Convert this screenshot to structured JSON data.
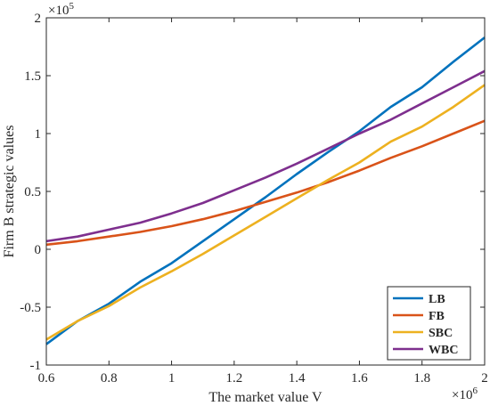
{
  "chart_data": {
    "type": "line",
    "title": "",
    "xlabel": "The market value V",
    "ylabel": "Firm B strategic values",
    "x_exponent_label": "×10",
    "x_exponent_power": "6",
    "y_exponent_label": "×10",
    "y_exponent_power": "5",
    "xlim": [
      0.6,
      2.0
    ],
    "ylim": [
      -1.0,
      2.0
    ],
    "xticks": [
      0.6,
      0.8,
      1.0,
      1.2,
      1.4,
      1.6,
      1.8,
      2.0
    ],
    "xtick_labels": [
      "0.6",
      "0.8",
      "1",
      "1.2",
      "1.4",
      "1.6",
      "1.8",
      "2"
    ],
    "yticks": [
      -1.0,
      -0.5,
      0,
      0.5,
      1.0,
      1.5,
      2.0
    ],
    "ytick_labels": [
      "-1",
      "-0.5",
      "0",
      "0.5",
      "1",
      "1.5",
      "2"
    ],
    "grid": false,
    "legend_position": "bottom-right",
    "x": [
      0.6,
      0.7,
      0.8,
      0.9,
      1.0,
      1.1,
      1.2,
      1.3,
      1.4,
      1.5,
      1.6,
      1.7,
      1.8,
      1.9,
      2.0
    ],
    "series": [
      {
        "name": "LB",
        "color": "#0072BD",
        "values": [
          -0.82,
          -0.62,
          -0.47,
          -0.28,
          -0.12,
          0.07,
          0.26,
          0.45,
          0.65,
          0.84,
          1.02,
          1.23,
          1.4,
          1.62,
          1.83
        ]
      },
      {
        "name": "FB",
        "color": "#D95319",
        "values": [
          0.04,
          0.07,
          0.11,
          0.15,
          0.2,
          0.26,
          0.33,
          0.41,
          0.49,
          0.58,
          0.68,
          0.79,
          0.89,
          1.0,
          1.11
        ]
      },
      {
        "name": "SBC",
        "color": "#EDB120",
        "values": [
          -0.78,
          -0.62,
          -0.49,
          -0.33,
          -0.19,
          -0.04,
          0.12,
          0.28,
          0.44,
          0.6,
          0.75,
          0.93,
          1.06,
          1.23,
          1.42
        ]
      },
      {
        "name": "WBC",
        "color": "#7E2F8E",
        "values": [
          0.07,
          0.11,
          0.17,
          0.23,
          0.31,
          0.4,
          0.51,
          0.62,
          0.74,
          0.87,
          1.0,
          1.12,
          1.26,
          1.4,
          1.54
        ]
      }
    ]
  }
}
